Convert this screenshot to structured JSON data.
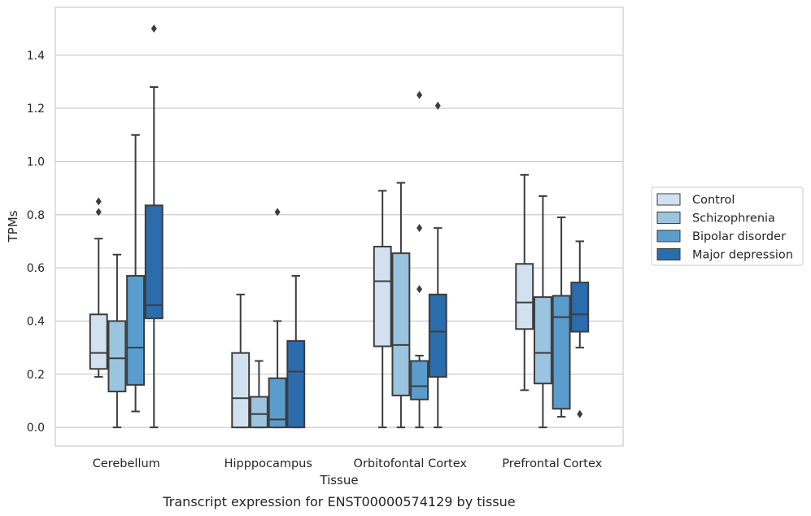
{
  "chart_data": {
    "type": "boxplot",
    "caption": "Transcript expression for ENST00000574129 by tissue",
    "xlabel": "Tissue",
    "ylabel": "TPMs",
    "ylim": [
      -0.07,
      1.58
    ],
    "yticks": [
      0.0,
      0.2,
      0.4,
      0.6,
      0.8,
      1.0,
      1.2,
      1.4
    ],
    "ytick_labels": [
      "0.0",
      "0.2",
      "0.4",
      "0.6",
      "0.8",
      "1.0",
      "1.2",
      "1.4"
    ],
    "grid": "horizontal",
    "legend_position": "right",
    "categories": [
      "Cerebellum",
      "Hipppocampus",
      "Orbitofontal Cortex",
      "Prefrontal Cortex"
    ],
    "series": [
      {
        "name": "Control",
        "color": "#d2e1f0",
        "boxes": [
          {
            "whislo": 0.19,
            "q1": 0.22,
            "med": 0.28,
            "q3": 0.425,
            "whishi": 0.71,
            "fliers": [
              0.81,
              0.85
            ]
          },
          {
            "whislo": 0.0,
            "q1": 0.0,
            "med": 0.11,
            "q3": 0.28,
            "whishi": 0.5,
            "fliers": []
          },
          {
            "whislo": 0.0,
            "q1": 0.305,
            "med": 0.55,
            "q3": 0.68,
            "whishi": 0.89,
            "fliers": []
          },
          {
            "whislo": 0.14,
            "q1": 0.37,
            "med": 0.47,
            "q3": 0.615,
            "whishi": 0.95,
            "fliers": []
          }
        ]
      },
      {
        "name": "Schizophrenia",
        "color": "#9ac4df",
        "boxes": [
          {
            "whislo": 0.0,
            "q1": 0.135,
            "med": 0.26,
            "q3": 0.4,
            "whishi": 0.65,
            "fliers": []
          },
          {
            "whislo": 0.0,
            "q1": 0.0,
            "med": 0.05,
            "q3": 0.115,
            "whishi": 0.25,
            "fliers": []
          },
          {
            "whislo": 0.0,
            "q1": 0.12,
            "med": 0.31,
            "q3": 0.655,
            "whishi": 0.92,
            "fliers": []
          },
          {
            "whislo": 0.0,
            "q1": 0.165,
            "med": 0.28,
            "q3": 0.49,
            "whishi": 0.87,
            "fliers": []
          }
        ]
      },
      {
        "name": "Bipolar disorder",
        "color": "#5a9ccc",
        "boxes": [
          {
            "whislo": 0.06,
            "q1": 0.16,
            "med": 0.3,
            "q3": 0.57,
            "whishi": 1.1,
            "fliers": []
          },
          {
            "whislo": 0.0,
            "q1": 0.0,
            "med": 0.03,
            "q3": 0.185,
            "whishi": 0.4,
            "fliers": [
              0.81
            ]
          },
          {
            "whislo": 0.0,
            "q1": 0.105,
            "med": 0.155,
            "q3": 0.25,
            "whishi": 0.27,
            "fliers": [
              0.52,
              0.75,
              1.25
            ]
          },
          {
            "whislo": 0.04,
            "q1": 0.07,
            "med": 0.415,
            "q3": 0.495,
            "whishi": 0.79,
            "fliers": []
          }
        ]
      },
      {
        "name": "Major depression",
        "color": "#2a6cac",
        "boxes": [
          {
            "whislo": 0.0,
            "q1": 0.41,
            "med": 0.46,
            "q3": 0.835,
            "whishi": 1.28,
            "fliers": [
              1.5
            ]
          },
          {
            "whislo": 0.0,
            "q1": 0.0,
            "med": 0.21,
            "q3": 0.325,
            "whishi": 0.57,
            "fliers": []
          },
          {
            "whislo": 0.0,
            "q1": 0.19,
            "med": 0.36,
            "q3": 0.5,
            "whishi": 0.75,
            "fliers": [
              1.21
            ]
          },
          {
            "whislo": 0.3,
            "q1": 0.36,
            "med": 0.425,
            "q3": 0.545,
            "whishi": 0.7,
            "fliers": [
              0.05
            ]
          }
        ]
      }
    ]
  }
}
